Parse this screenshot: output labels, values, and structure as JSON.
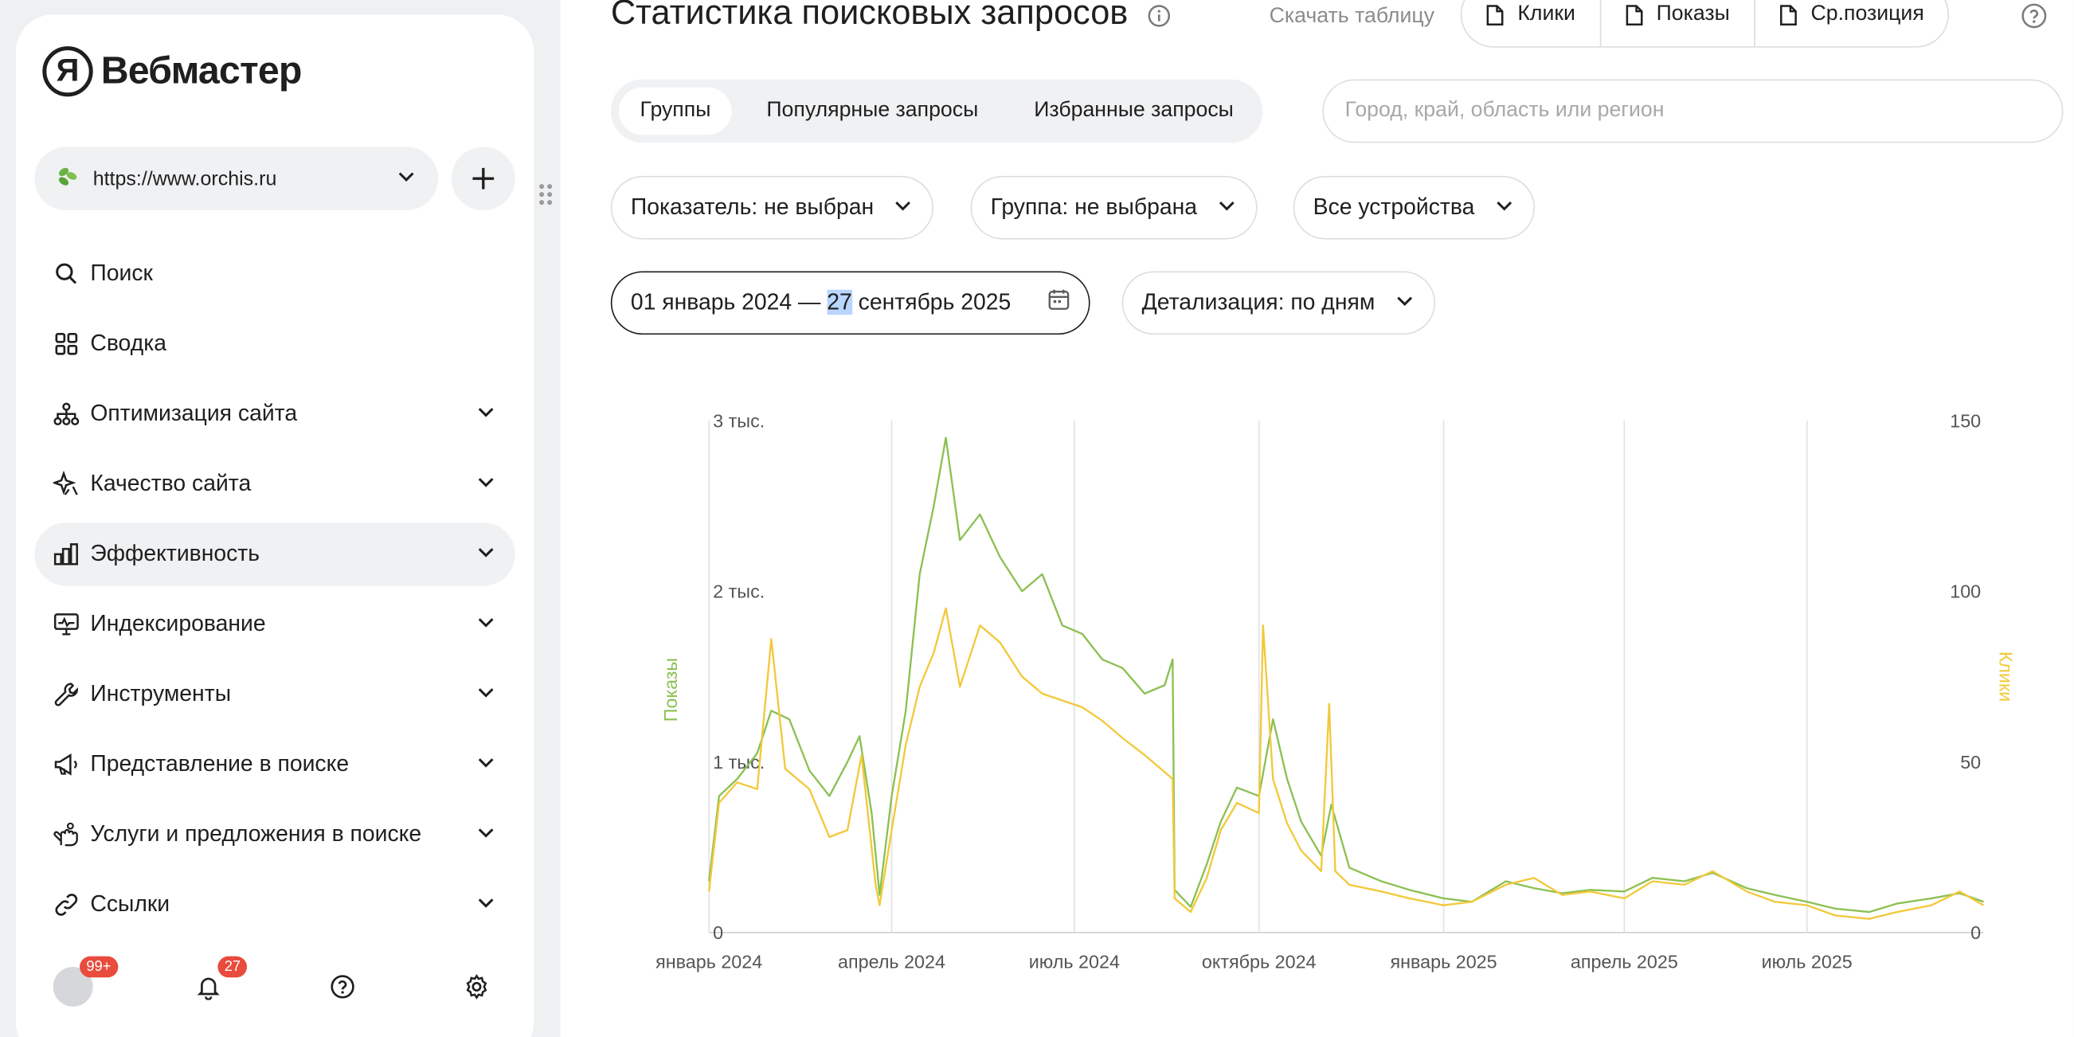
{
  "sidebar": {
    "logo_mark": "Я",
    "logo_text": "Вебмастер",
    "site": "https://www.orchis.ru",
    "items": [
      {
        "label": "Поиск",
        "icon": "search-icon",
        "expand": false
      },
      {
        "label": "Сводка",
        "icon": "grid-icon",
        "expand": false
      },
      {
        "label": "Оптимизация сайта",
        "icon": "sitemap-icon",
        "expand": true
      },
      {
        "label": "Качество сайта",
        "icon": "sparkle-icon",
        "expand": true
      },
      {
        "label": "Эффективность",
        "icon": "bar-chart-icon",
        "expand": true,
        "active": true
      },
      {
        "label": "Индексирование",
        "icon": "monitor-icon",
        "expand": true
      },
      {
        "label": "Инструменты",
        "icon": "wrench-icon",
        "expand": true
      },
      {
        "label": "Представление в поиске",
        "icon": "megaphone-icon",
        "expand": true
      },
      {
        "label": "Услуги и предложения в поиске",
        "icon": "hand-icon",
        "expand": true
      },
      {
        "label": "Ссылки",
        "icon": "link-icon",
        "expand": true
      }
    ],
    "bottom": {
      "profile_badge": "99+",
      "notifications_badge": "27"
    }
  },
  "header": {
    "title": "Статистика поисковых запросов",
    "download_label": "Скачать таблицу",
    "downloads": [
      "Клики",
      "Показы",
      "Ср.позиция"
    ]
  },
  "tabs": [
    "Группы",
    "Популярные запросы",
    "Избранные запросы"
  ],
  "active_tab": "Группы",
  "region": {
    "placeholder": "Город, край, область или регион",
    "value": ""
  },
  "filters": {
    "metric": "Показатель: не выбран",
    "group": "Группа: не выбрана",
    "devices": "Все устройства",
    "date_start": "01 январь 2024 — ",
    "date_highlight": "27",
    "date_end": " сентябрь 2025",
    "detail": "Детализация: по дням"
  },
  "colors": {
    "shows": "#8cc052",
    "clicks": "#f2c93a",
    "active_bg": "#f0f1f3",
    "badge": "#e94b3c"
  },
  "chart_data": {
    "type": "line",
    "x_range": [
      "2024-01-01",
      "2025-09-27"
    ],
    "x_ticks": [
      "январь 2024",
      "апрель 2024",
      "июль 2024",
      "октябрь 2024",
      "январь 2025",
      "апрель 2025",
      "июль 2025"
    ],
    "y_left": {
      "label": "Показы",
      "range": [
        0,
        3000
      ],
      "ticks": [
        "0",
        "1 тыс.",
        "2 тыс.",
        "3 тыс."
      ]
    },
    "y_right": {
      "label": "Клики",
      "range": [
        0,
        150
      ],
      "ticks": [
        "0",
        "50",
        "100",
        "150"
      ]
    },
    "grid": "vertical",
    "series": [
      {
        "name": "Показы",
        "axis": "left",
        "points": [
          [
            "2024-01-01",
            300
          ],
          [
            "2024-01-06",
            800
          ],
          [
            "2024-01-15",
            900
          ],
          [
            "2024-01-25",
            1050
          ],
          [
            "2024-02-01",
            1300
          ],
          [
            "2024-02-10",
            1250
          ],
          [
            "2024-02-20",
            950
          ],
          [
            "2024-03-01",
            800
          ],
          [
            "2024-03-10",
            1000
          ],
          [
            "2024-03-16",
            1150
          ],
          [
            "2024-03-22",
            700
          ],
          [
            "2024-03-26",
            220
          ],
          [
            "2024-04-01",
            800
          ],
          [
            "2024-04-08",
            1300
          ],
          [
            "2024-04-15",
            2100
          ],
          [
            "2024-04-22",
            2500
          ],
          [
            "2024-04-28",
            2900
          ],
          [
            "2024-05-05",
            2300
          ],
          [
            "2024-05-15",
            2450
          ],
          [
            "2024-05-25",
            2200
          ],
          [
            "2024-06-05",
            2000
          ],
          [
            "2024-06-15",
            2100
          ],
          [
            "2024-06-25",
            1800
          ],
          [
            "2024-07-05",
            1750
          ],
          [
            "2024-07-15",
            1600
          ],
          [
            "2024-07-25",
            1550
          ],
          [
            "2024-08-05",
            1400
          ],
          [
            "2024-08-15",
            1450
          ],
          [
            "2024-08-19",
            1600
          ],
          [
            "2024-08-20",
            250
          ],
          [
            "2024-08-28",
            150
          ],
          [
            "2024-09-05",
            400
          ],
          [
            "2024-09-12",
            650
          ],
          [
            "2024-09-20",
            850
          ],
          [
            "2024-10-01",
            800
          ],
          [
            "2024-10-08",
            1250
          ],
          [
            "2024-10-15",
            900
          ],
          [
            "2024-10-22",
            650
          ],
          [
            "2024-11-01",
            450
          ],
          [
            "2024-11-06",
            750
          ],
          [
            "2024-11-15",
            380
          ],
          [
            "2024-12-01",
            300
          ],
          [
            "2024-12-15",
            250
          ],
          [
            "2025-01-01",
            200
          ],
          [
            "2025-01-15",
            180
          ],
          [
            "2025-02-01",
            300
          ],
          [
            "2025-02-15",
            260
          ],
          [
            "2025-03-01",
            230
          ],
          [
            "2025-03-15",
            250
          ],
          [
            "2025-04-01",
            240
          ],
          [
            "2025-04-15",
            320
          ],
          [
            "2025-05-01",
            300
          ],
          [
            "2025-05-15",
            350
          ],
          [
            "2025-06-01",
            260
          ],
          [
            "2025-06-15",
            220
          ],
          [
            "2025-07-01",
            180
          ],
          [
            "2025-07-15",
            140
          ],
          [
            "2025-08-01",
            120
          ],
          [
            "2025-08-15",
            170
          ],
          [
            "2025-09-01",
            200
          ],
          [
            "2025-09-15",
            230
          ],
          [
            "2025-09-27",
            180
          ]
        ]
      },
      {
        "name": "Клики",
        "axis": "right",
        "points": [
          [
            "2024-01-01",
            12
          ],
          [
            "2024-01-06",
            38
          ],
          [
            "2024-01-15",
            44
          ],
          [
            "2024-01-25",
            42
          ],
          [
            "2024-02-01",
            86
          ],
          [
            "2024-02-08",
            48
          ],
          [
            "2024-02-20",
            42
          ],
          [
            "2024-03-01",
            28
          ],
          [
            "2024-03-10",
            30
          ],
          [
            "2024-03-17",
            52
          ],
          [
            "2024-03-24",
            14
          ],
          [
            "2024-03-26",
            8
          ],
          [
            "2024-04-01",
            30
          ],
          [
            "2024-04-08",
            55
          ],
          [
            "2024-04-15",
            72
          ],
          [
            "2024-04-22",
            82
          ],
          [
            "2024-04-28",
            95
          ],
          [
            "2024-05-05",
            72
          ],
          [
            "2024-05-15",
            90
          ],
          [
            "2024-05-25",
            85
          ],
          [
            "2024-06-05",
            75
          ],
          [
            "2024-06-15",
            70
          ],
          [
            "2024-06-25",
            68
          ],
          [
            "2024-07-05",
            66
          ],
          [
            "2024-07-15",
            62
          ],
          [
            "2024-07-25",
            57
          ],
          [
            "2024-08-05",
            52
          ],
          [
            "2024-08-15",
            47
          ],
          [
            "2024-08-19",
            45
          ],
          [
            "2024-08-20",
            10
          ],
          [
            "2024-08-28",
            6
          ],
          [
            "2024-09-05",
            16
          ],
          [
            "2024-09-12",
            30
          ],
          [
            "2024-09-20",
            38
          ],
          [
            "2024-10-01",
            35
          ],
          [
            "2024-10-03",
            90
          ],
          [
            "2024-10-08",
            45
          ],
          [
            "2024-10-15",
            32
          ],
          [
            "2024-10-22",
            24
          ],
          [
            "2024-11-01",
            18
          ],
          [
            "2024-11-05",
            67
          ],
          [
            "2024-11-08",
            18
          ],
          [
            "2024-11-15",
            14
          ],
          [
            "2024-12-01",
            12
          ],
          [
            "2024-12-15",
            10
          ],
          [
            "2025-01-01",
            8
          ],
          [
            "2025-01-15",
            9
          ],
          [
            "2025-02-01",
            14
          ],
          [
            "2025-02-15",
            16
          ],
          [
            "2025-03-01",
            11
          ],
          [
            "2025-03-15",
            12
          ],
          [
            "2025-04-01",
            10
          ],
          [
            "2025-04-15",
            15
          ],
          [
            "2025-05-01",
            14
          ],
          [
            "2025-05-15",
            18
          ],
          [
            "2025-06-01",
            12
          ],
          [
            "2025-06-15",
            9
          ],
          [
            "2025-07-01",
            8
          ],
          [
            "2025-07-15",
            5
          ],
          [
            "2025-08-01",
            4
          ],
          [
            "2025-08-15",
            6
          ],
          [
            "2025-09-01",
            8
          ],
          [
            "2025-09-15",
            12
          ],
          [
            "2025-09-27",
            8
          ]
        ]
      }
    ]
  }
}
